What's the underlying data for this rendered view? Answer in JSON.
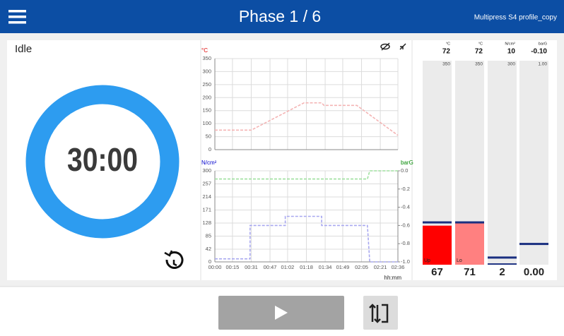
{
  "header": {
    "title": "Phase 1 / 6",
    "subtitle": "Multipress S4 profile_copy"
  },
  "status": "Idle",
  "timer": "30:00",
  "charts": [
    {
      "type": "line",
      "y_label": "°C",
      "xlim": [
        0,
        156
      ],
      "xticks": [
        0,
        15,
        31,
        47,
        62,
        78,
        94,
        109,
        125,
        141,
        156
      ],
      "ylim": [
        0,
        350
      ],
      "yticks": [
        0,
        50,
        100,
        150,
        200,
        250,
        300,
        350
      ],
      "grid": true,
      "series": [
        {
          "color": "#f4b4b4",
          "x": [
            0,
            31,
            76,
            91,
            93,
            121,
            156
          ],
          "values": [
            75,
            75,
            180,
            180,
            170,
            170,
            55
          ]
        }
      ]
    },
    {
      "type": "line",
      "y_label": "N/cm²",
      "y2_label": "barG",
      "x_label": "hh:mm",
      "xlim": [
        0,
        156
      ],
      "xticks": [
        {
          "value": 0,
          "label": "00:00"
        },
        {
          "value": 15,
          "label": "00:15"
        },
        {
          "value": 31,
          "label": "00:31"
        },
        {
          "value": 47,
          "label": "00:47"
        },
        {
          "value": 62,
          "label": "01:02"
        },
        {
          "value": 78,
          "label": "01:18"
        },
        {
          "value": 94,
          "label": "01:34"
        },
        {
          "value": 109,
          "label": "01:49"
        },
        {
          "value": 125,
          "label": "02:05"
        },
        {
          "value": 141,
          "label": "02:21"
        },
        {
          "value": 156,
          "label": "02:36"
        }
      ],
      "ylim": [
        0,
        300
      ],
      "yticks": [
        0,
        42,
        85,
        128,
        171,
        214,
        257,
        300
      ],
      "y2lim": [
        -1,
        0
      ],
      "y2ticks": [
        {
          "value": 0,
          "label": "0.0"
        },
        -0.2,
        -0.4,
        -0.6,
        -0.8,
        {
          "value": -1,
          "label": "-1.0"
        }
      ],
      "grid": true,
      "series": [
        {
          "color": "#a8a8f0",
          "x": [
            0,
            30,
            30,
            60,
            60,
            91,
            91,
            130,
            132,
            156
          ],
          "values": [
            10,
            10,
            120,
            120,
            150,
            150,
            120,
            120,
            0,
            0
          ]
        },
        {
          "color": "#9fe09f",
          "axis": "y2",
          "x": [
            0,
            130,
            132,
            156
          ],
          "values": [
            -0.09,
            -0.09,
            0,
            0
          ]
        }
      ]
    }
  ],
  "gauges": [
    {
      "unit": "°C",
      "setpoint": 72,
      "max_label": "350",
      "lim": [
        0,
        350
      ],
      "value": 67,
      "fill_label": "Up",
      "color": "#ff0000"
    },
    {
      "unit": "°C",
      "setpoint": 72,
      "max_label": "350",
      "lim": [
        0,
        350
      ],
      "value": 71,
      "fill_label": "Lo",
      "color": "#ff8080"
    },
    {
      "unit": "N/cm²",
      "setpoint": 10,
      "max_label": "300",
      "lim": [
        0,
        300
      ],
      "value": 2,
      "color": "#1a2f80"
    },
    {
      "unit": "barG",
      "setpoint": {
        "value": -0.1,
        "label": "-0.10"
      },
      "max_label": "1.00",
      "lim": [
        0,
        -1
      ],
      "value": {
        "value": 0,
        "label": "0.00"
      },
      "color": "#1a2f80"
    }
  ]
}
